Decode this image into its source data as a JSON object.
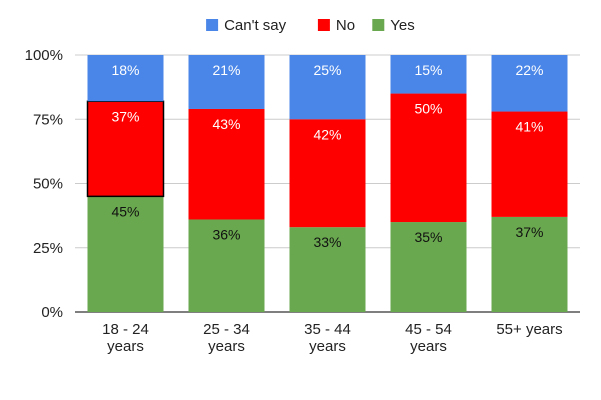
{
  "chart_data": {
    "type": "bar",
    "stacked": true,
    "categories": [
      [
        "18 - 24",
        "years"
      ],
      [
        "25 - 34",
        "years"
      ],
      [
        "35 - 44",
        "years"
      ],
      [
        "45 - 54",
        "years"
      ],
      [
        "55+ years"
      ]
    ],
    "series": [
      {
        "name": "Yes",
        "color": "#6aa84f",
        "values": [
          45,
          36,
          33,
          35,
          37
        ],
        "labels": [
          "45%",
          "36%",
          "33%",
          "35%",
          "37%"
        ]
      },
      {
        "name": "No",
        "color": "#ff0000",
        "values": [
          37,
          43,
          42,
          50,
          41
        ],
        "labels": [
          "37%",
          "43%",
          "42%",
          "50%",
          "41%"
        ]
      },
      {
        "name": "Can't say",
        "color": "#4a86e8",
        "values": [
          18,
          21,
          25,
          15,
          22
        ],
        "labels": [
          "18%",
          "21%",
          "25%",
          "15%",
          "22%"
        ]
      }
    ],
    "legend_order": [
      "Can't say",
      "No",
      "Yes"
    ],
    "legend_position": "top",
    "ylim": [
      0,
      100
    ],
    "yticks": [
      0,
      25,
      50,
      75,
      100
    ],
    "ytick_labels": [
      "0%",
      "25%",
      "50%",
      "75%",
      "100%"
    ],
    "grid": true,
    "highlighted_segment": {
      "category_index": 0,
      "series": "No"
    },
    "title": "",
    "xlabel": "",
    "ylabel": ""
  }
}
